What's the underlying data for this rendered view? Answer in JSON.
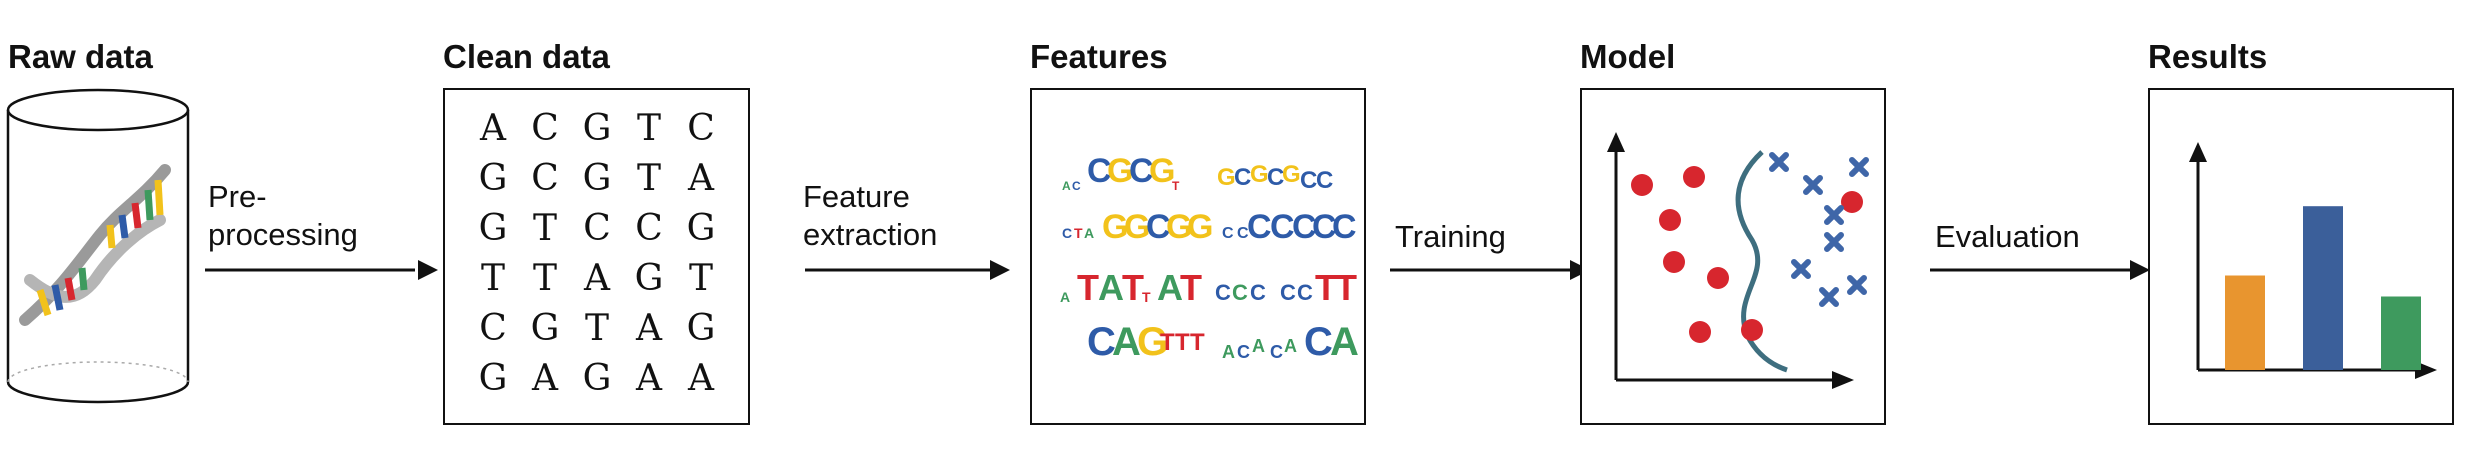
{
  "stages": [
    {
      "title": "Raw data"
    },
    {
      "title": "Clean data"
    },
    {
      "title": "Features"
    },
    {
      "title": "Model"
    },
    {
      "title": "Results"
    }
  ],
  "arrows": [
    {
      "label_line1": "Pre-",
      "label_line2": "processing"
    },
    {
      "label_line1": "Feature",
      "label_line2": "extraction"
    },
    {
      "label_line1": "Training",
      "label_line2": ""
    },
    {
      "label_line1": "Evaluation",
      "label_line2": ""
    }
  ],
  "sequences": [
    [
      "A",
      "C",
      "G",
      "T",
      "C"
    ],
    [
      "G",
      "C",
      "G",
      "T",
      "A"
    ],
    [
      "G",
      "T",
      "C",
      "C",
      "G"
    ],
    [
      "T",
      "T",
      "A",
      "G",
      "T"
    ],
    [
      "C",
      "G",
      "T",
      "A",
      "G"
    ],
    [
      "G",
      "A",
      "G",
      "A",
      "A"
    ]
  ],
  "colors": {
    "orange": "#E8952F",
    "blue": "#3B5F9A",
    "green": "#3E9A5E",
    "red": "#D7262E",
    "cross_blue": "#3F66A8",
    "curve": "#3E6E7F",
    "dna_gray": "#9A9A9A",
    "dna_yellow": "#F2C21B",
    "dna_blue": "#2E5BA8",
    "dna_red": "#D7262E",
    "dna_green": "#3E9A5E"
  },
  "icons": [
    "cylinder-icon",
    "dna-helix-icon",
    "sequence-logo-icon",
    "scatter-plot-icon",
    "bar-chart-icon",
    "arrow-icon"
  ],
  "results_chart": {
    "type": "bar",
    "values": [
      0.45,
      0.78,
      0.35
    ],
    "colors": [
      "#E8952F",
      "#3B5F9A",
      "#3E9A5E"
    ]
  }
}
